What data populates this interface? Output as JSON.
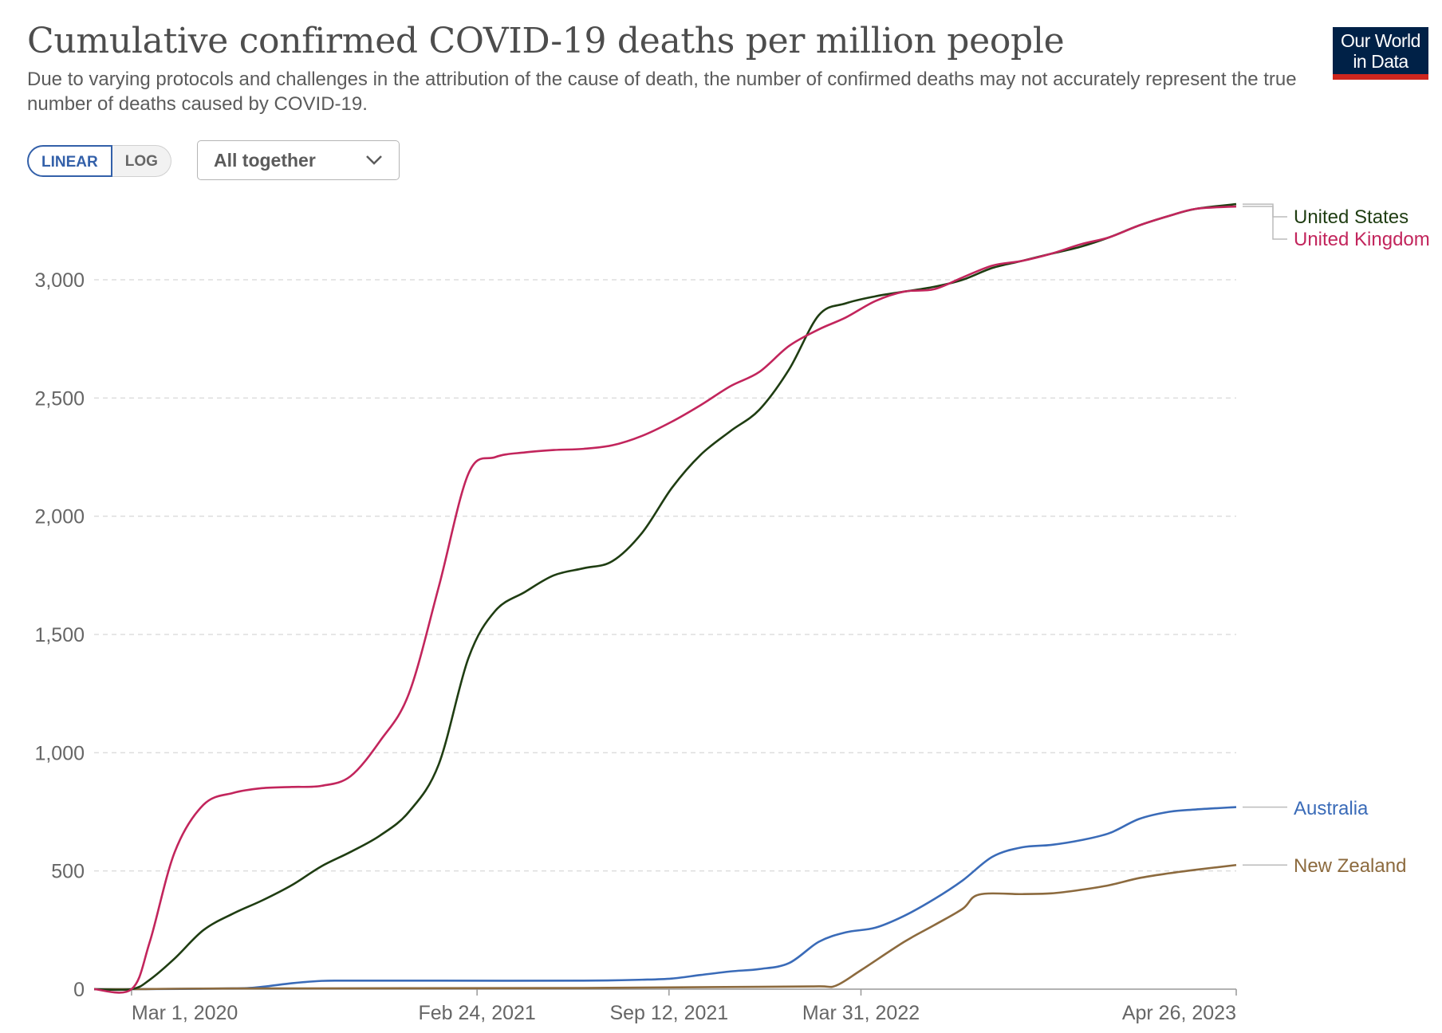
{
  "header": {
    "title": "Cumulative confirmed COVID-19 deaths per million people",
    "subtitle": "Due to varying protocols and challenges in the attribution of the cause of death, the number of confirmed deaths may not accurately represent the true number of deaths caused by COVID-19.",
    "logo_line1": "Our World",
    "logo_line2": "in Data"
  },
  "controls": {
    "linear_label": "LINEAR",
    "log_label": "LOG",
    "selected_scale": "linear",
    "dropdown_value": "All together"
  },
  "colors": {
    "United States": "#1f3d12",
    "United Kingdom": "#c2255c",
    "Australia": "#3a6bb8",
    "New Zealand": "#8c6a3e",
    "grid": "#dddddd",
    "axis": "#999999"
  },
  "chart_data": {
    "type": "line",
    "title": "Cumulative confirmed COVID-19 deaths per million people",
    "xlabel": "",
    "ylabel": "",
    "x_range": [
      "2020-01-22",
      "2023-04-26"
    ],
    "ylim": [
      0,
      3300
    ],
    "y_ticks": [
      0,
      500,
      1000,
      1500,
      2000,
      2500,
      3000
    ],
    "y_tick_labels": [
      "0",
      "500",
      "1,000",
      "1,500",
      "2,000",
      "2,500",
      "3,000"
    ],
    "x_ticks": [
      "2020-03-01",
      "2021-02-24",
      "2021-09-12",
      "2022-03-31",
      "2023-04-26"
    ],
    "x_tick_labels": [
      "Mar 1, 2020",
      "Feb 24, 2021",
      "Sep 12, 2021",
      "Mar 31, 2022",
      "Apr 26, 2023"
    ],
    "grid": true,
    "legend_placement": "right",
    "series": [
      {
        "name": "United States",
        "points": [
          [
            "2020-01-22",
            0
          ],
          [
            "2020-03-01",
            0
          ],
          [
            "2020-03-20",
            40
          ],
          [
            "2020-04-15",
            130
          ],
          [
            "2020-05-15",
            250
          ],
          [
            "2020-06-15",
            320
          ],
          [
            "2020-07-15",
            375
          ],
          [
            "2020-08-15",
            440
          ],
          [
            "2020-09-15",
            520
          ],
          [
            "2020-10-15",
            580
          ],
          [
            "2020-11-15",
            650
          ],
          [
            "2020-12-15",
            750
          ],
          [
            "2021-01-15",
            950
          ],
          [
            "2021-02-15",
            1400
          ],
          [
            "2021-03-15",
            1600
          ],
          [
            "2021-04-15",
            1680
          ],
          [
            "2021-05-15",
            1750
          ],
          [
            "2021-06-15",
            1780
          ],
          [
            "2021-07-15",
            1810
          ],
          [
            "2021-08-15",
            1930
          ],
          [
            "2021-09-15",
            2120
          ],
          [
            "2021-10-15",
            2260
          ],
          [
            "2021-11-15",
            2360
          ],
          [
            "2021-12-15",
            2450
          ],
          [
            "2022-01-15",
            2620
          ],
          [
            "2022-02-15",
            2850
          ],
          [
            "2022-03-15",
            2900
          ],
          [
            "2022-04-15",
            2930
          ],
          [
            "2022-05-15",
            2950
          ],
          [
            "2022-06-15",
            2970
          ],
          [
            "2022-07-15",
            3000
          ],
          [
            "2022-08-15",
            3050
          ],
          [
            "2022-09-15",
            3080
          ],
          [
            "2022-10-15",
            3110
          ],
          [
            "2022-11-15",
            3140
          ],
          [
            "2022-12-15",
            3180
          ],
          [
            "2023-01-15",
            3230
          ],
          [
            "2023-02-15",
            3270
          ],
          [
            "2023-03-15",
            3300
          ],
          [
            "2023-04-26",
            3320
          ]
        ]
      },
      {
        "name": "United Kingdom",
        "points": [
          [
            "2020-01-22",
            0
          ],
          [
            "2020-03-01",
            0
          ],
          [
            "2020-03-20",
            200
          ],
          [
            "2020-04-15",
            580
          ],
          [
            "2020-05-15",
            780
          ],
          [
            "2020-06-15",
            830
          ],
          [
            "2020-07-15",
            850
          ],
          [
            "2020-08-15",
            855
          ],
          [
            "2020-09-15",
            860
          ],
          [
            "2020-10-15",
            900
          ],
          [
            "2020-11-15",
            1050
          ],
          [
            "2020-12-15",
            1250
          ],
          [
            "2021-01-15",
            1700
          ],
          [
            "2021-02-15",
            2180
          ],
          [
            "2021-03-15",
            2250
          ],
          [
            "2021-04-15",
            2270
          ],
          [
            "2021-05-15",
            2280
          ],
          [
            "2021-06-15",
            2285
          ],
          [
            "2021-07-15",
            2300
          ],
          [
            "2021-08-15",
            2340
          ],
          [
            "2021-09-15",
            2400
          ],
          [
            "2021-10-15",
            2470
          ],
          [
            "2021-11-15",
            2550
          ],
          [
            "2021-12-15",
            2610
          ],
          [
            "2022-01-15",
            2720
          ],
          [
            "2022-02-15",
            2790
          ],
          [
            "2022-03-15",
            2840
          ],
          [
            "2022-04-15",
            2910
          ],
          [
            "2022-05-15",
            2950
          ],
          [
            "2022-06-15",
            2960
          ],
          [
            "2022-07-15",
            3010
          ],
          [
            "2022-08-15",
            3060
          ],
          [
            "2022-09-15",
            3080
          ],
          [
            "2022-10-15",
            3110
          ],
          [
            "2022-11-15",
            3150
          ],
          [
            "2022-12-15",
            3180
          ],
          [
            "2023-01-15",
            3230
          ],
          [
            "2023-02-15",
            3270
          ],
          [
            "2023-03-15",
            3300
          ],
          [
            "2023-04-26",
            3310
          ]
        ]
      },
      {
        "name": "Australia",
        "points": [
          [
            "2020-01-22",
            0
          ],
          [
            "2020-03-01",
            0
          ],
          [
            "2020-06-15",
            3
          ],
          [
            "2020-07-15",
            10
          ],
          [
            "2020-08-15",
            25
          ],
          [
            "2020-09-15",
            35
          ],
          [
            "2020-10-15",
            36
          ],
          [
            "2021-01-15",
            36
          ],
          [
            "2021-06-15",
            36
          ],
          [
            "2021-08-15",
            40
          ],
          [
            "2021-09-15",
            45
          ],
          [
            "2021-10-15",
            60
          ],
          [
            "2021-11-15",
            75
          ],
          [
            "2021-12-15",
            85
          ],
          [
            "2022-01-15",
            110
          ],
          [
            "2022-02-15",
            200
          ],
          [
            "2022-03-15",
            240
          ],
          [
            "2022-04-15",
            260
          ],
          [
            "2022-05-15",
            310
          ],
          [
            "2022-06-15",
            380
          ],
          [
            "2022-07-15",
            460
          ],
          [
            "2022-08-15",
            560
          ],
          [
            "2022-09-15",
            600
          ],
          [
            "2022-10-15",
            610
          ],
          [
            "2022-11-15",
            630
          ],
          [
            "2022-12-15",
            660
          ],
          [
            "2023-01-15",
            720
          ],
          [
            "2023-02-15",
            750
          ],
          [
            "2023-03-15",
            760
          ],
          [
            "2023-04-26",
            770
          ]
        ]
      },
      {
        "name": "New Zealand",
        "points": [
          [
            "2020-01-22",
            0
          ],
          [
            "2020-03-01",
            0
          ],
          [
            "2020-06-15",
            3
          ],
          [
            "2021-06-15",
            5
          ],
          [
            "2021-12-15",
            10
          ],
          [
            "2022-02-15",
            12
          ],
          [
            "2022-03-05",
            15
          ],
          [
            "2022-03-31",
            80
          ],
          [
            "2022-05-15",
            200
          ],
          [
            "2022-06-15",
            270
          ],
          [
            "2022-07-15",
            340
          ],
          [
            "2022-08-01",
            400
          ],
          [
            "2022-09-15",
            402
          ],
          [
            "2022-10-15",
            405
          ],
          [
            "2022-11-15",
            420
          ],
          [
            "2022-12-15",
            440
          ],
          [
            "2023-01-15",
            470
          ],
          [
            "2023-02-15",
            490
          ],
          [
            "2023-03-15",
            505
          ],
          [
            "2023-04-26",
            525
          ]
        ]
      }
    ]
  }
}
